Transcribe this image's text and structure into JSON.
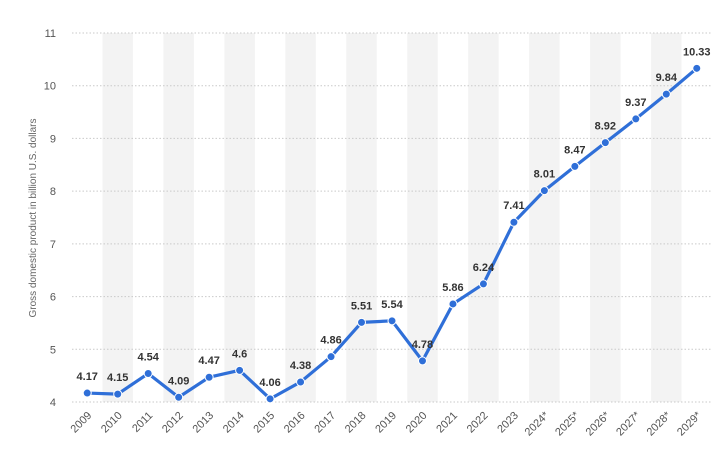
{
  "chart_data": {
    "type": "line",
    "title": "",
    "xlabel": "",
    "ylabel": "Gross domestic product in billion U.S. dollars",
    "categories": [
      "2009",
      "2010",
      "2011",
      "2012",
      "2013",
      "2014",
      "2015",
      "2016",
      "2017",
      "2018",
      "2019",
      "2020",
      "2021",
      "2022",
      "2023",
      "2024*",
      "2025*",
      "2026*",
      "2027*",
      "2028*",
      "2029*"
    ],
    "series": [
      {
        "values": [
          4.17,
          4.15,
          4.54,
          4.09,
          4.47,
          4.6,
          4.06,
          4.38,
          4.86,
          5.51,
          5.54,
          4.78,
          5.86,
          6.24,
          7.41,
          8.01,
          8.47,
          8.92,
          9.37,
          9.84,
          10.33
        ],
        "labels": [
          "4.17",
          "4.15",
          "4.54",
          "4.09",
          "4.47",
          "4.6",
          "4.06",
          "4.38",
          "4.86",
          "5.51",
          "5.54",
          "4.78",
          "5.86",
          "6.24",
          "7.41",
          "8.01",
          "8.47",
          "8.92",
          "9.37",
          "9.84",
          "10.33"
        ]
      }
    ],
    "ylim": [
      4,
      11
    ],
    "yticks": [
      "4",
      "5",
      "6",
      "7",
      "8",
      "9",
      "10",
      "11"
    ],
    "grid": true,
    "colors": {
      "line": "#2f6fd8",
      "marker_fill": "#2f6fd8",
      "grid": "#c9c9c9",
      "band": "#f3f3f3"
    }
  }
}
